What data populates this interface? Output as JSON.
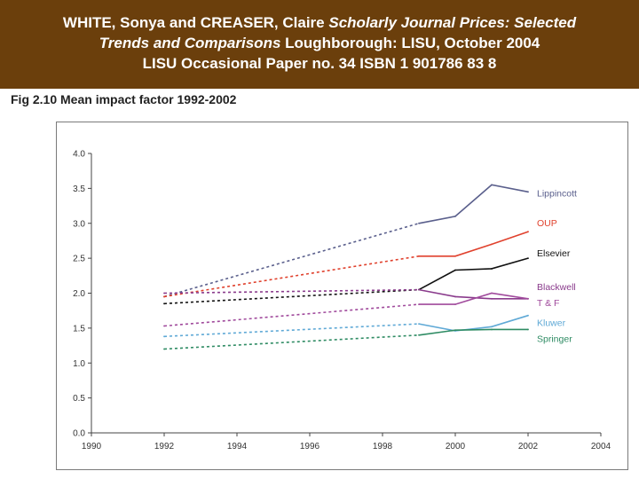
{
  "header": {
    "line1_prefix": "WHITE, Sonya and CREASER, Claire ",
    "line1_italic": "Scholarly Journal Prices: Selected",
    "line2_italic": "Trends and Comparisons",
    "line2_suffix": " Loughborough: LISU, October 2004",
    "line3": "LISU Occasional Paper no. 34 ISBN 1 901786 83 8",
    "background": "#6b3f0c"
  },
  "chart_data": {
    "type": "line",
    "title": "Fig 2.10 Mean impact factor 1992-2002",
    "xlabel": "",
    "ylabel": "",
    "xlim": [
      1990,
      2004
    ],
    "ylim": [
      0.0,
      4.0
    ],
    "x_ticks": [
      1990,
      1992,
      1994,
      1996,
      1998,
      2000,
      2002,
      2004
    ],
    "x_tick_labels": [
      "1990",
      "1992",
      "1994",
      "1996",
      "1998",
      "2000",
      "2002",
      "2004"
    ],
    "y_ticks": [
      0.0,
      0.5,
      1.0,
      1.5,
      2.0,
      2.5,
      3.0,
      3.5,
      4.0
    ],
    "y_tick_labels": [
      "0.0",
      "0.5",
      "1.0",
      "1.5",
      "2.0",
      "2.5",
      "3.0",
      "3.5",
      "4.0"
    ],
    "grid": false,
    "legend": "labels at line ends (right)",
    "dashed_until": 1999,
    "series": [
      {
        "name": "Lippincott",
        "color": "#5a5f8c",
        "x": [
          1992,
          1999,
          2000,
          2001,
          2002
        ],
        "y": [
          1.95,
          3.0,
          3.1,
          3.55,
          3.45
        ]
      },
      {
        "name": "OUP",
        "color": "#e0412d",
        "x": [
          1992,
          1999,
          2000,
          2001,
          2002
        ],
        "y": [
          1.95,
          2.53,
          2.53,
          2.7,
          2.88
        ]
      },
      {
        "name": "Elsevier",
        "color": "#111111",
        "x": [
          1992,
          1999,
          2000,
          2001,
          2002
        ],
        "y": [
          1.85,
          2.05,
          2.33,
          2.35,
          2.5
        ]
      },
      {
        "name": "Blackwell",
        "color": "#8a3b8c",
        "x": [
          1992,
          1999,
          2000,
          2001,
          2002
        ],
        "y": [
          2.0,
          2.05,
          1.95,
          1.92,
          1.92
        ]
      },
      {
        "name": "T & F",
        "color": "#a04a9c",
        "x": [
          1992,
          1999,
          2000,
          2001,
          2002
        ],
        "y": [
          1.53,
          1.84,
          1.84,
          2.0,
          1.92
        ]
      },
      {
        "name": "Kluwer",
        "color": "#5fa9d6",
        "x": [
          1992,
          1999,
          2000,
          2001,
          2002
        ],
        "y": [
          1.38,
          1.56,
          1.46,
          1.52,
          1.68
        ]
      },
      {
        "name": "Springer",
        "color": "#2e8b63",
        "x": [
          1992,
          1999,
          2000,
          2001,
          2002
        ],
        "y": [
          1.2,
          1.4,
          1.47,
          1.48,
          1.48
        ]
      }
    ]
  }
}
